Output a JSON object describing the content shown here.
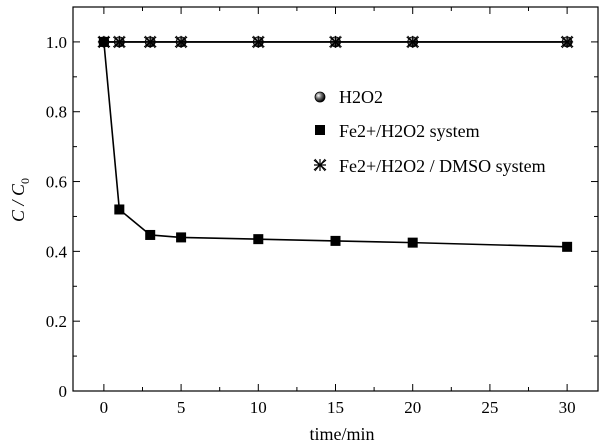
{
  "chart_data": {
    "type": "line",
    "xlabel": "time/min",
    "ylabel": "C / C0",
    "ylabel_main": "C / C",
    "ylabel_sub": "0",
    "xlim": [
      -2,
      32
    ],
    "ylim": [
      0,
      1.1
    ],
    "xticks": [
      0,
      5,
      10,
      15,
      20,
      25,
      30
    ],
    "yticks": [
      0,
      0.2,
      0.4,
      0.6,
      0.8,
      1.0
    ],
    "ytick_labels": [
      "0",
      "0.2",
      "0.4",
      "0.6",
      "0.8",
      "1.0"
    ],
    "grid": false,
    "legend_position": "right",
    "legend_labels": {
      "h2o2": "H2O2",
      "fe_h2o2": "Fe2+/H2O2 system",
      "fe_h2o2_dmso": "Fe2+/H2O2 / DMSO system"
    },
    "series": [
      {
        "name": "H2O2",
        "marker": "sphere",
        "x": [
          0,
          1,
          3,
          5,
          10,
          15,
          20,
          30
        ],
        "y": [
          1.0,
          1.0,
          1.0,
          1.0,
          1.0,
          1.0,
          1.0,
          1.0
        ]
      },
      {
        "name": "Fe2+/H2O2 system",
        "marker": "square",
        "x": [
          0,
          1,
          3,
          5,
          10,
          15,
          20,
          30
        ],
        "y": [
          1.0,
          0.52,
          0.447,
          0.44,
          0.435,
          0.43,
          0.425,
          0.413
        ]
      },
      {
        "name": "Fe2+/H2O2 / DMSO system",
        "marker": "star",
        "x": [
          0,
          1,
          3,
          5,
          10,
          15,
          20,
          30
        ],
        "y": [
          1.0,
          1.0,
          1.0,
          1.0,
          1.0,
          1.0,
          1.0,
          1.0
        ]
      }
    ]
  }
}
